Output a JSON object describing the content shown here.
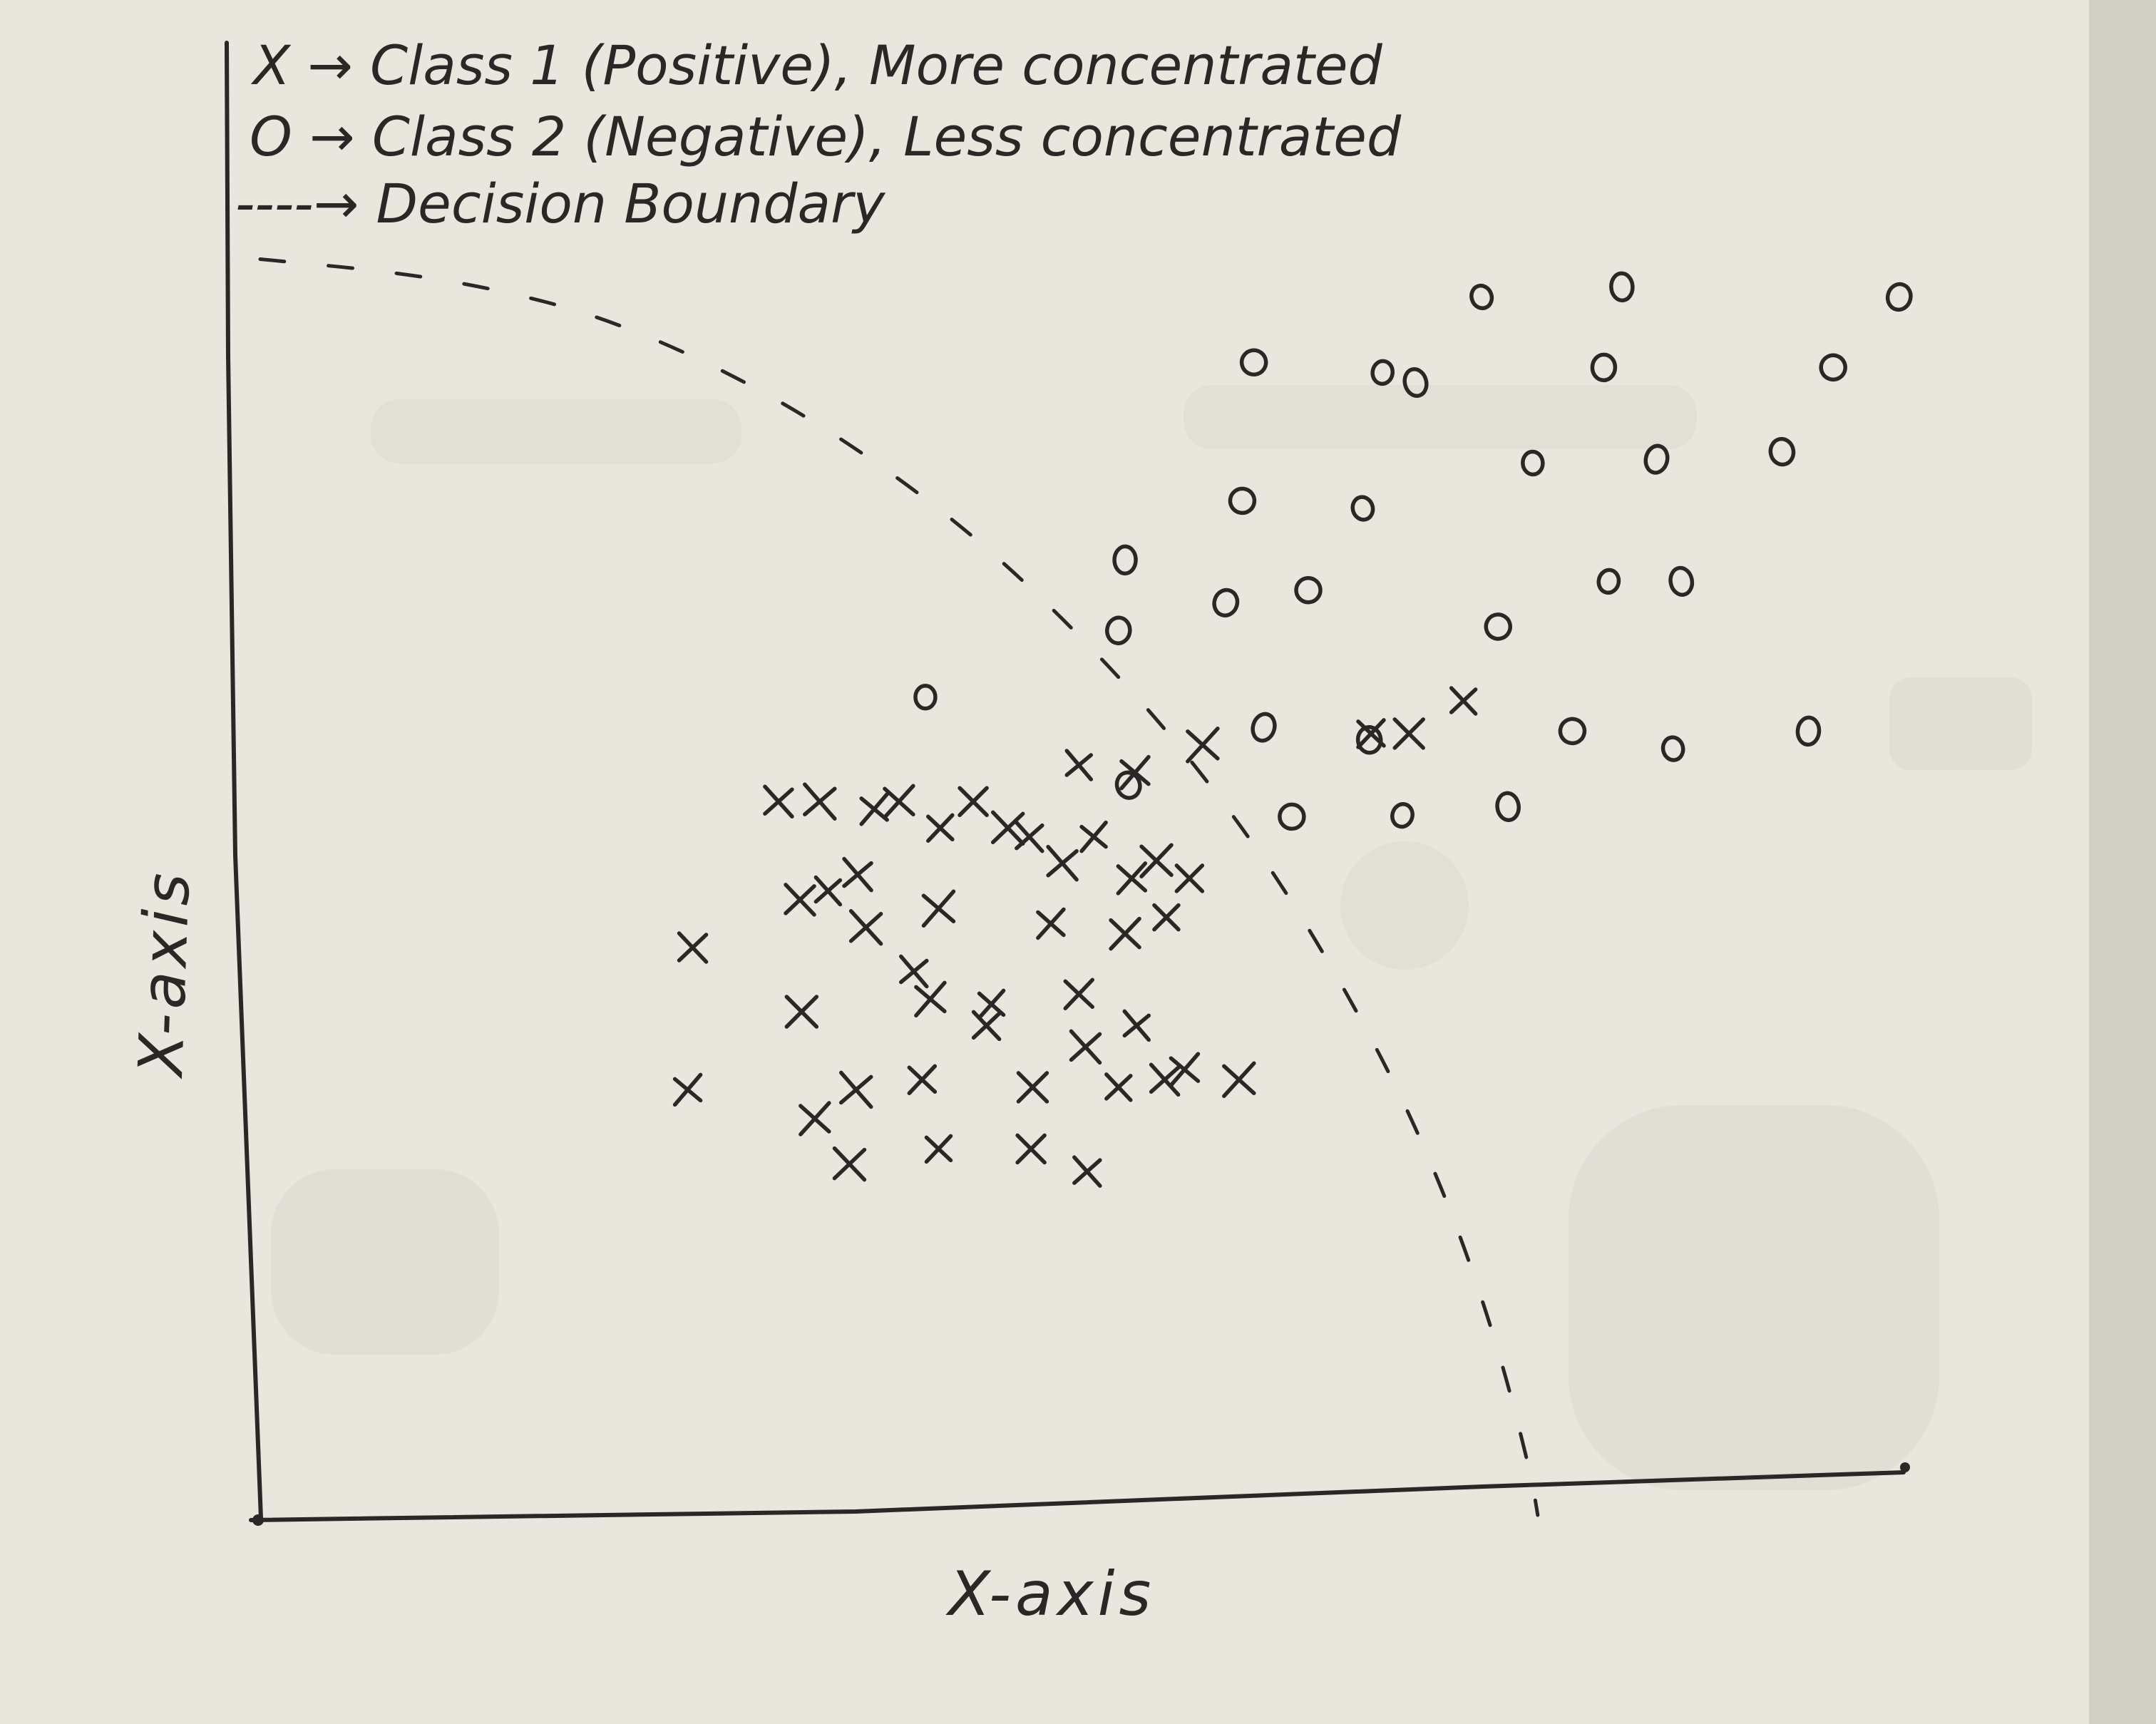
{
  "colors": {
    "paper": "#ebe9e0",
    "ink": "#2a2826",
    "shadow": "#d6d4ca"
  },
  "legend": {
    "line1": "X → Class 1 (Positive), More concentrated",
    "line2": "O → Class 2 (Negative), Less concentrated",
    "line3": "----→ Decision Boundary"
  },
  "chart_data": {
    "type": "scatter",
    "title": "",
    "xlabel": "X-axis",
    "ylabel": "X-axis",
    "xlim": [
      0,
      100
    ],
    "ylim": [
      0,
      100
    ],
    "grid": false,
    "legend_position": "top-left",
    "series": [
      {
        "name": "Class 1 (Positive)",
        "marker": "x",
        "points": [
          [
            49.6,
            59.6
          ],
          [
            53.0,
            59.0
          ],
          [
            57.1,
            61.2
          ],
          [
            67.3,
            62.1
          ],
          [
            69.6,
            62.1
          ],
          [
            72.9,
            64.7
          ],
          [
            31.4,
            56.7
          ],
          [
            33.9,
            56.7
          ],
          [
            37.2,
            56.1
          ],
          [
            38.7,
            56.7
          ],
          [
            41.2,
            54.6
          ],
          [
            43.2,
            56.7
          ],
          [
            45.3,
            54.6
          ],
          [
            46.6,
            53.9
          ],
          [
            48.6,
            51.8
          ],
          [
            50.5,
            53.9
          ],
          [
            52.8,
            50.6
          ],
          [
            54.3,
            52.0
          ],
          [
            56.3,
            50.6
          ],
          [
            32.7,
            48.9
          ],
          [
            34.4,
            49.6
          ],
          [
            36.2,
            50.9
          ],
          [
            41.1,
            48.2
          ],
          [
            47.9,
            47.0
          ],
          [
            52.4,
            46.2
          ],
          [
            54.9,
            47.5
          ],
          [
            26.2,
            45.1
          ],
          [
            36.7,
            46.7
          ],
          [
            39.6,
            43.2
          ],
          [
            40.6,
            41.0
          ],
          [
            44.3,
            40.6
          ],
          [
            49.6,
            41.4
          ],
          [
            32.8,
            40.0
          ],
          [
            44.0,
            38.9
          ],
          [
            50.0,
            37.2
          ],
          [
            53.1,
            38.9
          ],
          [
            56.0,
            35.4
          ],
          [
            59.3,
            34.6
          ],
          [
            40.1,
            34.6
          ],
          [
            46.8,
            34.0
          ],
          [
            52.0,
            34.0
          ],
          [
            54.8,
            34.6
          ],
          [
            36.1,
            33.8
          ],
          [
            25.9,
            33.8
          ],
          [
            33.6,
            31.5
          ],
          [
            41.1,
            29.1
          ],
          [
            46.7,
            29.1
          ],
          [
            35.7,
            27.9
          ],
          [
            50.1,
            27.3
          ]
        ]
      },
      {
        "name": "Class 2 (Negative)",
        "marker": "o",
        "points": [
          [
            74.0,
            96.8
          ],
          [
            82.5,
            97.6
          ],
          [
            99.3,
            96.8
          ],
          [
            60.2,
            91.6
          ],
          [
            68.0,
            90.8
          ],
          [
            70.0,
            90.0
          ],
          [
            81.4,
            91.2
          ],
          [
            95.3,
            91.2
          ],
          [
            77.1,
            83.6
          ],
          [
            84.6,
            83.9
          ],
          [
            92.2,
            84.5
          ],
          [
            59.5,
            80.6
          ],
          [
            66.8,
            80.0
          ],
          [
            52.4,
            75.9
          ],
          [
            58.5,
            72.5
          ],
          [
            63.5,
            73.5
          ],
          [
            81.7,
            74.2
          ],
          [
            86.1,
            74.2
          ],
          [
            52.0,
            70.3
          ],
          [
            75.0,
            70.6
          ],
          [
            40.3,
            65.0
          ],
          [
            60.8,
            62.6
          ],
          [
            67.2,
            61.6
          ],
          [
            79.5,
            62.3
          ],
          [
            85.6,
            60.9
          ],
          [
            93.8,
            62.3
          ],
          [
            52.6,
            58.0
          ],
          [
            62.5,
            55.5
          ],
          [
            69.2,
            55.6
          ],
          [
            75.6,
            56.3
          ]
        ]
      }
    ],
    "decision_boundary": {
      "style": "dashed",
      "points": [
        [
          0,
          99.8
        ],
        [
          8,
          98.8
        ],
        [
          14,
          97.5
        ],
        [
          20,
          95.5
        ],
        [
          26,
          92.3
        ],
        [
          32,
          88.2
        ],
        [
          38,
          83.1
        ],
        [
          44,
          77.0
        ],
        [
          50,
          69.5
        ],
        [
          56,
          60.8
        ],
        [
          62,
          50.1
        ],
        [
          68,
          36.5
        ],
        [
          72,
          24.9
        ],
        [
          75,
          13.4
        ],
        [
          77,
          3.2
        ],
        [
          77.4,
          0
        ]
      ]
    }
  }
}
